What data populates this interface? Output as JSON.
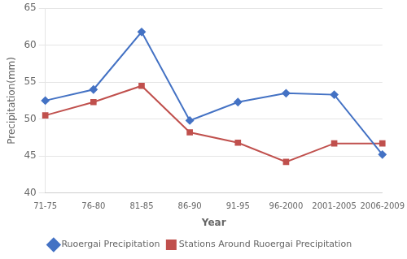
{
  "chart_data": {
    "type": "line",
    "categories": [
      "71-75",
      "76-80",
      "81-85",
      "86-90",
      "91-95",
      "96-2000",
      "2001-2005",
      "2006-2009"
    ],
    "series": [
      {
        "name": "Ruoergai Precipitation",
        "color": "#4472C4",
        "marker": "diamond",
        "values": [
          52.5,
          54.0,
          61.8,
          49.8,
          52.3,
          53.5,
          53.3,
          45.2
        ]
      },
      {
        "name": "Stations Around Ruoergai Precipitation",
        "color": "#C0504D",
        "marker": "square",
        "values": [
          50.5,
          52.3,
          54.5,
          48.2,
          46.8,
          44.2,
          46.7,
          46.7
        ]
      }
    ],
    "xlabel": "Year",
    "ylabel": "Precipitation(mm)",
    "ylim": [
      40,
      65
    ],
    "yticks": [
      40,
      45,
      50,
      55,
      60,
      65
    ],
    "grid": true,
    "legend": "bottom"
  }
}
